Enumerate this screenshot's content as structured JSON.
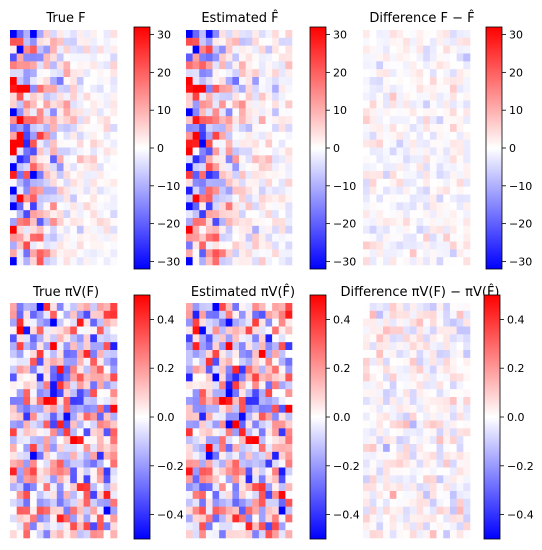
{
  "chart_data": [
    {
      "type": "heatmap",
      "title": "True F",
      "rows": 30,
      "cols": 16,
      "colormap": "bwr",
      "clim": [
        -32,
        32
      ],
      "colorbar_ticks": [
        30,
        20,
        10,
        0,
        -10,
        -20,
        -30
      ],
      "colorbar_tick_labels": [
        "30",
        "20",
        "10",
        "0",
        "−10",
        "−20",
        "−30"
      ],
      "pattern": {
        "kind": "matrix",
        "seed": 11,
        "col_decay": 0.22,
        "base_sd": 28,
        "floor_sd": 2.5,
        "clip": 32
      }
    },
    {
      "type": "heatmap",
      "title": "Estimated F̂",
      "rows": 30,
      "cols": 16,
      "colormap": "bwr",
      "clim": [
        -32,
        32
      ],
      "colorbar_ticks": [
        30,
        20,
        10,
        0,
        -10,
        -20,
        -30
      ],
      "colorbar_tick_labels": [
        "30",
        "20",
        "10",
        "0",
        "−10",
        "−20",
        "−30"
      ],
      "pattern": {
        "kind": "matrix",
        "seed": 11,
        "col_decay": 0.22,
        "base_sd": 28,
        "floor_sd": 2.5,
        "clip": 32,
        "noise_seed": 29,
        "noise_sd": 2.5
      }
    },
    {
      "type": "heatmap",
      "title": "Difference F − F̂",
      "rows": 30,
      "cols": 16,
      "colormap": "bwr",
      "clim": [
        -32,
        32
      ],
      "colorbar_ticks": [
        30,
        20,
        10,
        0,
        -10,
        -20,
        -30
      ],
      "colorbar_tick_labels": [
        "30",
        "20",
        "10",
        "0",
        "−10",
        "−20",
        "−30"
      ],
      "pattern": {
        "kind": "noise",
        "seed": 29,
        "sd": 2.5
      }
    },
    {
      "type": "heatmap",
      "title": "True πV(F)",
      "rows": 30,
      "cols": 16,
      "colormap": "bwr",
      "clim": [
        -0.5,
        0.5
      ],
      "colorbar_ticks": [
        0.4,
        0.2,
        0.0,
        -0.2,
        -0.4
      ],
      "colorbar_tick_labels": [
        "0.4",
        "0.2",
        "0.0",
        "−0.2",
        "−0.4"
      ],
      "pattern": {
        "kind": "uniform",
        "seed": 47,
        "sd": 0.22,
        "clip": 0.5
      }
    },
    {
      "type": "heatmap",
      "title": "Estimated πV(F̂)",
      "rows": 30,
      "cols": 16,
      "colormap": "bwr",
      "clim": [
        -0.5,
        0.5
      ],
      "colorbar_ticks": [
        0.4,
        0.2,
        0.0,
        -0.2,
        -0.4
      ],
      "colorbar_tick_labels": [
        "0.4",
        "0.2",
        "0.0",
        "−0.2",
        "−0.4"
      ],
      "pattern": {
        "kind": "uniform",
        "seed": 47,
        "sd": 0.22,
        "clip": 0.5,
        "noise_seed": 83,
        "noise_sd": 0.06
      }
    },
    {
      "type": "heatmap",
      "title": "Difference πV(F) − πV(F̂)",
      "rows": 30,
      "cols": 16,
      "colormap": "bwr",
      "clim": [
        -0.5,
        0.5
      ],
      "colorbar_ticks": [
        0.4,
        0.2,
        0.0,
        -0.2,
        -0.4
      ],
      "colorbar_tick_labels": [
        "0.4",
        "0.2",
        "0.0",
        "−0.2",
        "−0.4"
      ],
      "pattern": {
        "kind": "noise",
        "seed": 83,
        "sd": 0.06
      }
    }
  ]
}
